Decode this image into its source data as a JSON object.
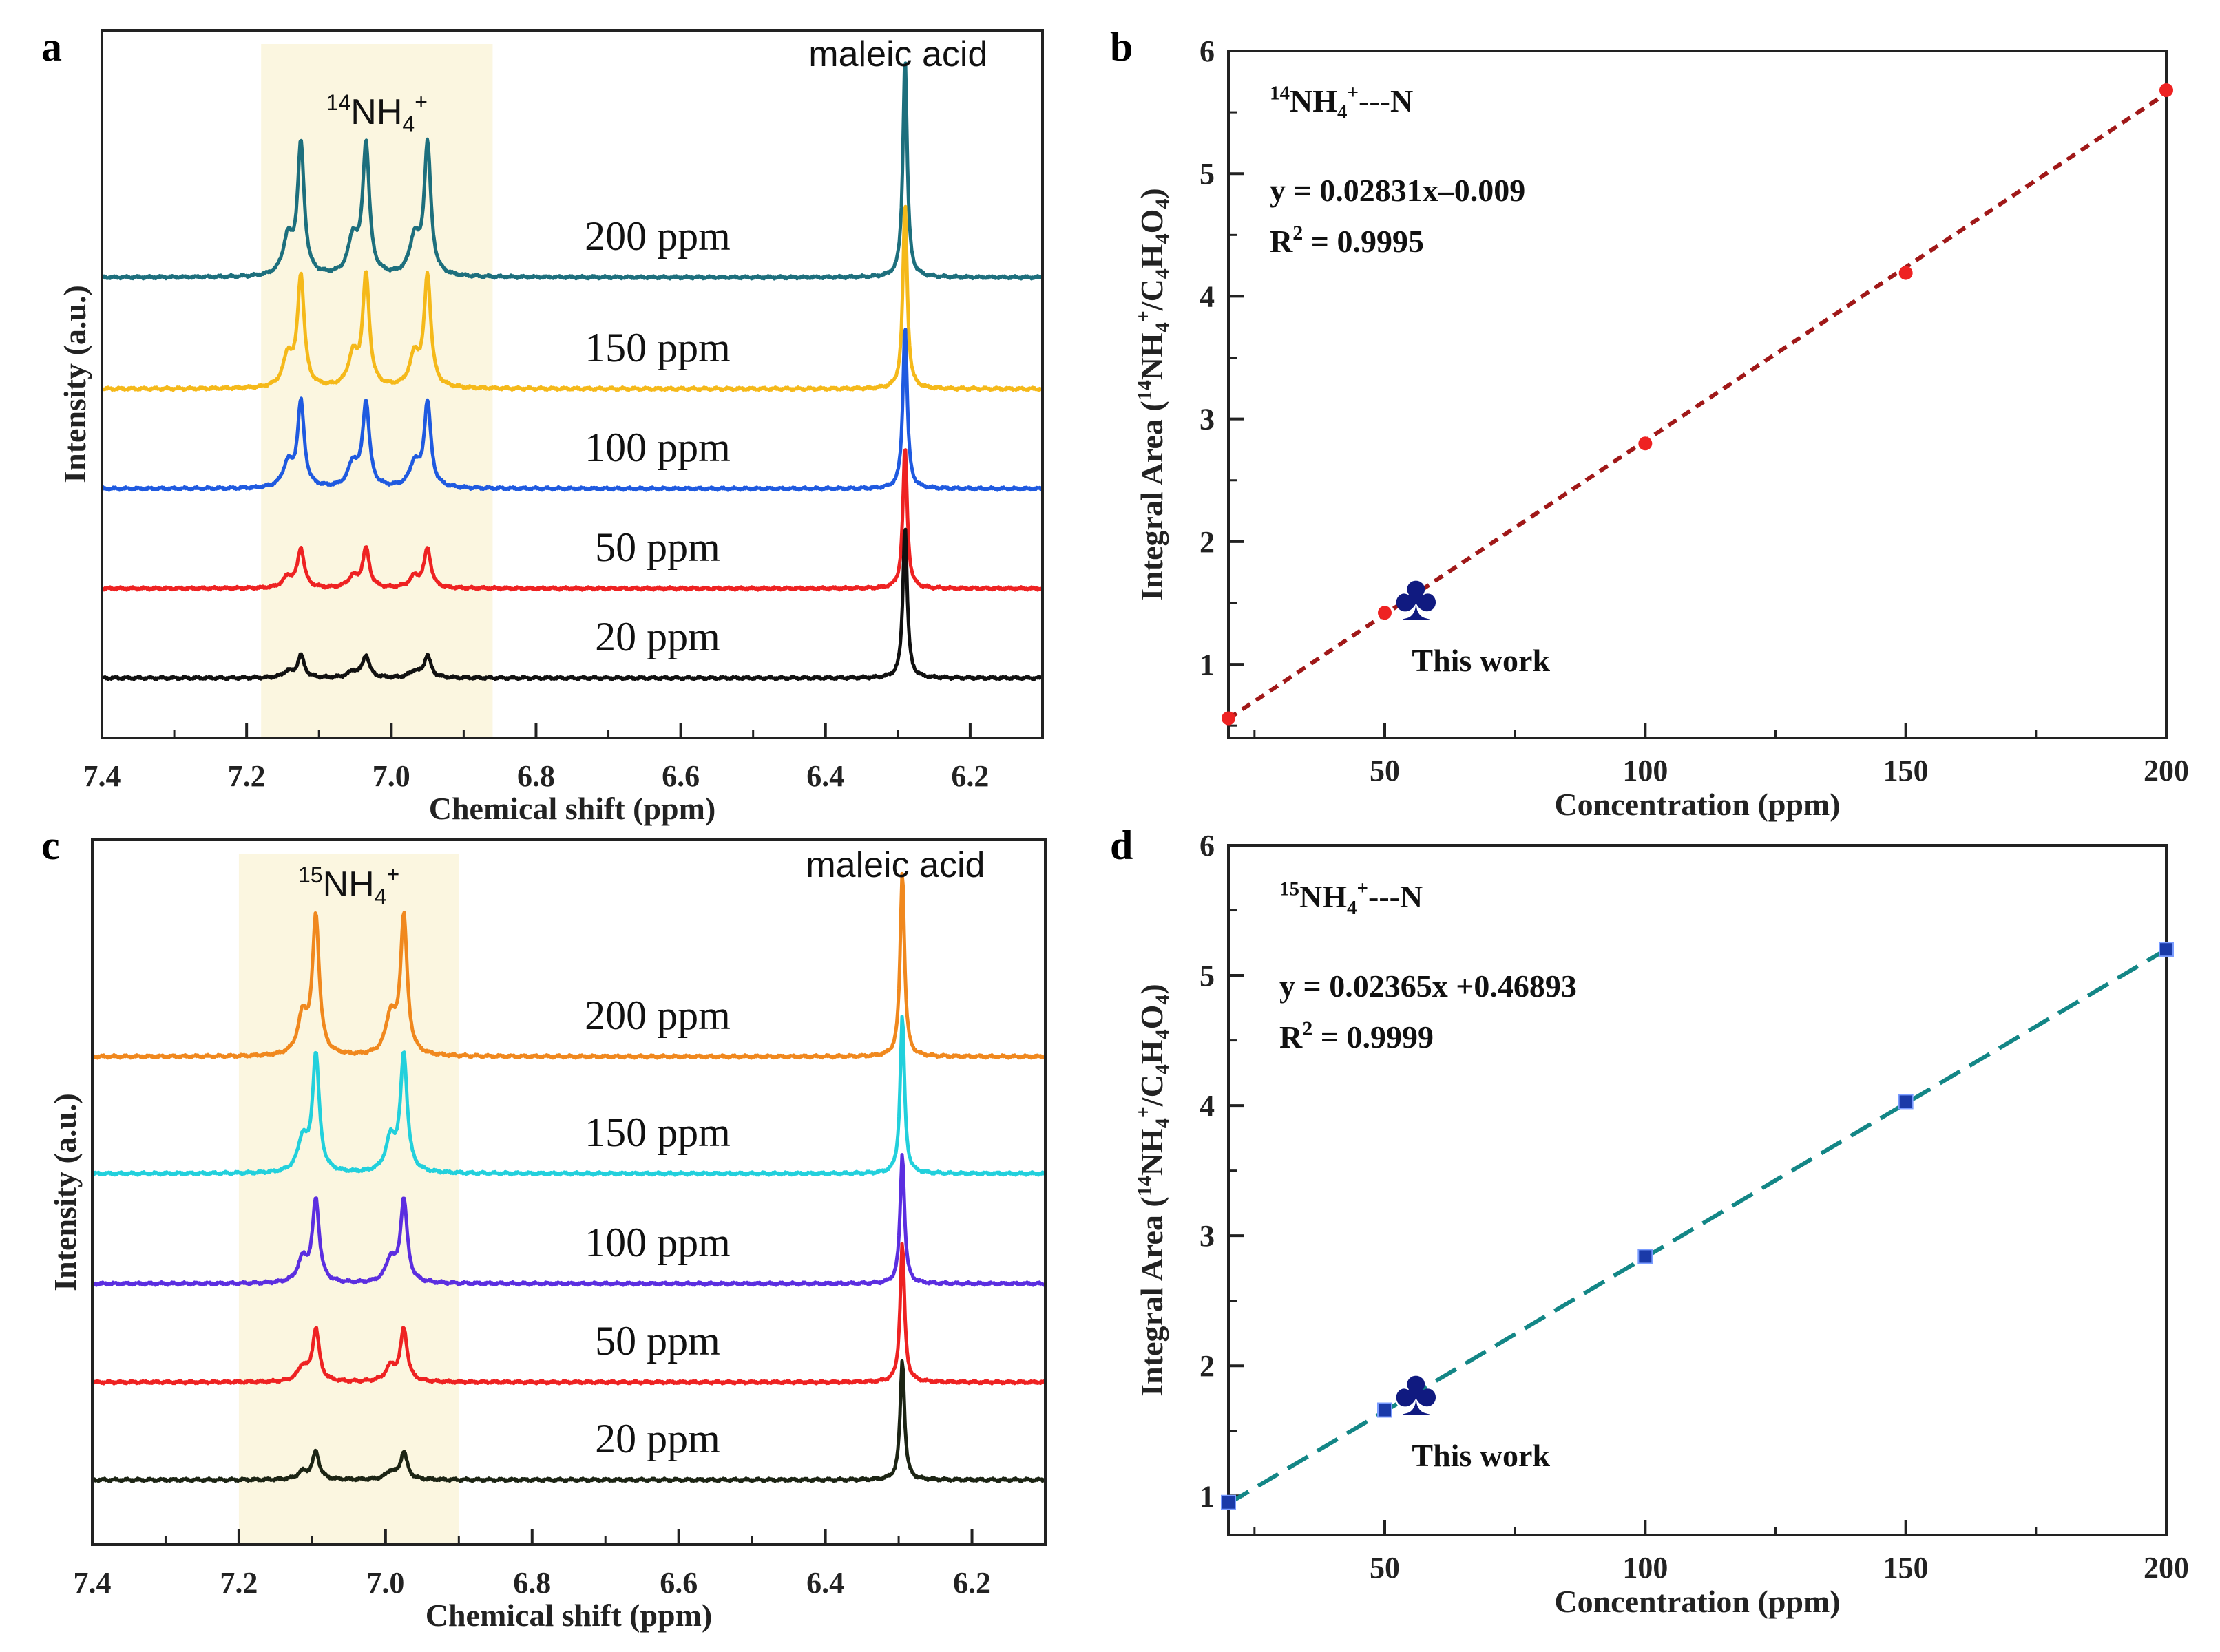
{
  "chart_data": [
    {
      "panel": "a",
      "type": "line",
      "title": "",
      "xlabel": "Chemical shift (ppm)",
      "ylabel": "Intensity (a.u.)",
      "xlim": [
        7.4,
        6.1
      ],
      "xticks": [
        "7.4",
        "7.2",
        "7.0",
        "6.8",
        "6.6",
        "6.4",
        "6.2"
      ],
      "highlight_region_ppm": [
        7.18,
        6.86
      ],
      "annotations": {
        "nmr_peak": "14NH4+",
        "reference": "maleic acid"
      },
      "triplet_peaks_ppm": [
        7.125,
        7.035,
        6.95
      ],
      "reference_peak_ppm": 6.29,
      "series": [
        {
          "name": "200 ppm",
          "label": "200 ppm",
          "color": "#1d6f7d",
          "triplet_height": 1.0,
          "reference_height": 1.0
        },
        {
          "name": "150 ppm",
          "label": "150 ppm",
          "color": "#f5b91a",
          "triplet_height": 0.85,
          "reference_height": 0.85
        },
        {
          "name": "100 ppm",
          "label": "100 ppm",
          "color": "#1f5ae0",
          "triplet_height": 0.65,
          "reference_height": 0.75
        },
        {
          "name": "50 ppm",
          "label": "50 ppm",
          "color": "#ee2222",
          "triplet_height": 0.3,
          "reference_height": 0.65
        },
        {
          "name": "20 ppm",
          "label": "20 ppm",
          "color": "#111111",
          "triplet_height": 0.17,
          "reference_height": 0.7
        }
      ]
    },
    {
      "panel": "b",
      "type": "scatter",
      "title": "",
      "xlabel": "Concentration (ppm)",
      "ylabel": "Integral Area (14NH4+/C4H4O4)",
      "xlim": [
        20,
        200
      ],
      "ylim": [
        0.4,
        6
      ],
      "xticks": [
        50,
        100,
        150,
        200
      ],
      "yticks": [
        1,
        2,
        3,
        4,
        5,
        6
      ],
      "series_name": "14NH4+---N",
      "equation": "y = 0.02831x–0.009",
      "r_squared": "R2 = 0.9995",
      "fit": {
        "slope": 0.02831,
        "intercept": -0.009,
        "color": "#a01818",
        "style": "dotted"
      },
      "points": [
        {
          "x": 20,
          "y": 0.56
        },
        {
          "x": 50,
          "y": 1.42
        },
        {
          "x": 100,
          "y": 2.8
        },
        {
          "x": 150,
          "y": 4.19
        },
        {
          "x": 200,
          "y": 5.68
        }
      ],
      "point_color": "#ee2222",
      "this_work": {
        "x": 56,
        "y": 1.55,
        "label": "This work"
      }
    },
    {
      "panel": "c",
      "type": "line",
      "title": "",
      "xlabel": "Chemical shift (ppm)",
      "ylabel": "Intensity (a.u.)",
      "xlim": [
        7.4,
        6.1
      ],
      "xticks": [
        "7.4",
        "7.2",
        "7.0",
        "6.8",
        "6.6",
        "6.4",
        "6.2"
      ],
      "highlight_region_ppm": [
        7.2,
        6.9
      ],
      "annotations": {
        "nmr_peak": "15NH4+",
        "reference": "maleic acid"
      },
      "doublet_peaks_ppm": [
        7.095,
        6.975
      ],
      "reference_peak_ppm": 6.295,
      "series": [
        {
          "name": "200 ppm",
          "label": "200 ppm",
          "color": "#f0881e",
          "doublet_height": 1.0,
          "reference_height": 1.0
        },
        {
          "name": "150 ppm",
          "label": "150 ppm",
          "color": "#22d0dc",
          "doublet_height": 0.85,
          "reference_height": 0.85
        },
        {
          "name": "100 ppm",
          "label": "100 ppm",
          "color": "#5b2ee0",
          "doublet_height": 0.6,
          "reference_height": 0.7
        },
        {
          "name": "50 ppm",
          "label": "50 ppm",
          "color": "#ee2222",
          "doublet_height": 0.38,
          "reference_height": 0.75
        },
        {
          "name": "20 ppm",
          "label": "20 ppm",
          "color": "#1c2414",
          "doublet_height": 0.2,
          "reference_height": 0.65
        }
      ]
    },
    {
      "panel": "d",
      "type": "scatter",
      "title": "",
      "xlabel": "Concentration (ppm)",
      "ylabel": "Integral Area (14NH4+/C4H4O4)",
      "xlim": [
        20,
        200
      ],
      "ylim": [
        0.7,
        6
      ],
      "xticks": [
        50,
        100,
        150,
        200
      ],
      "yticks": [
        1,
        2,
        3,
        4,
        5,
        6
      ],
      "series_name": "15NH4+---N",
      "equation": "y = 0.02365x +0.46893",
      "r_squared": "R2 = 0.9999",
      "fit": {
        "slope": 0.02365,
        "intercept": 0.46893,
        "color": "#138686",
        "style": "dashed"
      },
      "points": [
        {
          "x": 20,
          "y": 0.95
        },
        {
          "x": 50,
          "y": 1.66
        },
        {
          "x": 100,
          "y": 2.84
        },
        {
          "x": 150,
          "y": 4.03
        },
        {
          "x": 200,
          "y": 5.2
        }
      ],
      "point_color": "#1a3aa8",
      "this_work": {
        "x": 56,
        "y": 1.8,
        "label": "This work"
      }
    }
  ],
  "panel_letters": {
    "a": "a",
    "b": "b",
    "c": "c",
    "d": "d"
  },
  "colors": {
    "highlight": "#fbf6e0",
    "club": "#101a80",
    "axis": "#222222"
  }
}
